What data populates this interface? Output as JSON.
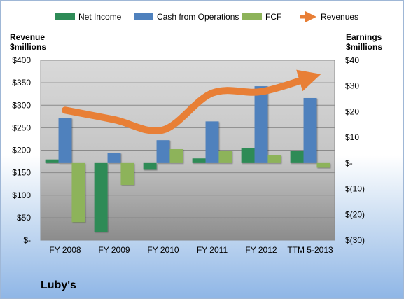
{
  "chart_data": {
    "type": "bar",
    "categories": [
      "FY 2008",
      "FY 2009",
      "FY 2010",
      "FY 2011",
      "FY 2012",
      "TTM 5-2013"
    ],
    "left_axis": {
      "title_lines": [
        "Revenue",
        "$millions"
      ],
      "ylim": [
        0,
        400
      ],
      "ticks": [
        0,
        50,
        100,
        150,
        200,
        250,
        300,
        350,
        400
      ],
      "tick_labels": [
        "$-",
        "$50",
        "$100",
        "$150",
        "$200",
        "$250",
        "$300",
        "$350",
        "$400"
      ]
    },
    "right_axis": {
      "title_lines": [
        "Earnings",
        "$millions"
      ],
      "ylim": [
        -30,
        40
      ],
      "ticks": [
        -30,
        -20,
        -10,
        0,
        10,
        20,
        30,
        40
      ],
      "tick_labels": [
        "$(30)",
        "$(20)",
        "$(10)",
        "$-",
        "$10",
        "$20",
        "$30",
        "$40"
      ]
    },
    "series": [
      {
        "name": "Net Income",
        "type": "bar",
        "axis": "right",
        "color": "#2e8b57",
        "values": [
          1.4,
          -26.8,
          -2.6,
          1.8,
          5.9,
          4.8
        ]
      },
      {
        "name": "Cash from Operations",
        "type": "bar",
        "axis": "right",
        "color": "#4f81bd",
        "values": [
          17.5,
          3.9,
          8.9,
          16.2,
          29.9,
          25.3
        ]
      },
      {
        "name": "FCF",
        "type": "bar",
        "axis": "right",
        "color": "#8db35a",
        "values": [
          -23.0,
          -8.5,
          5.4,
          4.8,
          3.0,
          -1.8
        ]
      },
      {
        "name": "Revenues",
        "type": "line",
        "axis": "left",
        "color": "#e87f36",
        "values": [
          289,
          268,
          245,
          327,
          330,
          362
        ]
      }
    ],
    "grid": true,
    "legend_position": "top"
  },
  "company": "Luby's"
}
